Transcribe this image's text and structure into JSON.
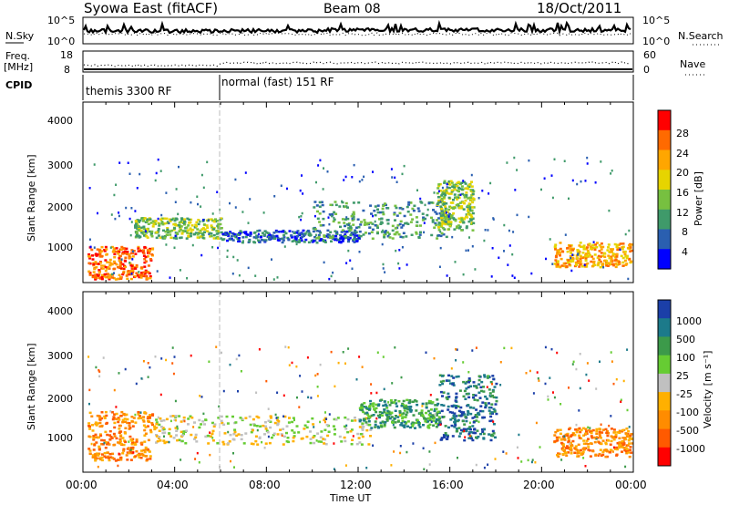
{
  "header": {
    "station": "Syowa East (fitACF)",
    "beam": "Beam 08",
    "date": "18/Oct/2011"
  },
  "noise_panel": {
    "left_label": "N.Sky",
    "right_label": "N.Search",
    "y_ticks_left": [
      "10^5",
      "10^0"
    ],
    "y_ticks_right": [
      "10^5",
      "10^0"
    ]
  },
  "freq_panel": {
    "left_label_line1": "Freq.",
    "left_label_line2": "[MHz]",
    "right_label": "Nave",
    "y_ticks_left": [
      "18",
      "8"
    ],
    "y_ticks_right": [
      "60",
      "0"
    ]
  },
  "cpid": {
    "label": "CPID",
    "segments": [
      {
        "name": "themis 3300 RF",
        "start_hour": 0
      },
      {
        "name": "normal (fast) 151 RF",
        "start_hour": 6
      }
    ]
  },
  "x_axis": {
    "label": "Time UT",
    "ticks": [
      "00:00",
      "04:00",
      "08:00",
      "12:00",
      "16:00",
      "20:00",
      "00:00"
    ]
  },
  "power_panel": {
    "ylabel": "Slant Range [km]",
    "yticks": [
      "4000",
      "3000",
      "2000",
      "1000"
    ],
    "cbar_label": "Power [dB]",
    "cbar_ticks": [
      "28",
      "24",
      "20",
      "16",
      "12",
      "8",
      "4"
    ],
    "cbar_colors": [
      "#ff0000",
      "#ff6a00",
      "#ffa600",
      "#e6d400",
      "#77c040",
      "#3f9a6a",
      "#2a5fb0",
      "#0000ff"
    ]
  },
  "velocity_panel": {
    "ylabel": "Slant Range [km]",
    "yticks": [
      "4000",
      "3000",
      "2000",
      "1000"
    ],
    "cbar_label": "Velocity [m s⁻¹]",
    "cbar_ticks": [
      "1000",
      "500",
      "100",
      "25",
      "-25",
      "-100",
      "-500",
      "-1000"
    ],
    "cbar_colors": [
      "#1b3fa8",
      "#1c7a8a",
      "#3c9a4a",
      "#66cc33",
      "#c0c0c0",
      "#ffb000",
      "#ff8c00",
      "#ff5a00",
      "#ff0000"
    ]
  },
  "chart_data": [
    {
      "type": "heatmap",
      "title": "Power [dB]",
      "xlabel": "Time UT",
      "ylabel": "Slant Range [km]",
      "xlim": [
        0,
        24
      ],
      "ylim": [
        200,
        4600
      ],
      "color_scale": [
        4,
        8,
        12,
        16,
        20,
        24,
        28
      ],
      "scatter_regions": [
        {
          "t": [
            0.2,
            3.0
          ],
          "range_km": [
            300,
            1100
          ],
          "value_db": 26
        },
        {
          "t": [
            2.2,
            6.0
          ],
          "range_km": [
            1300,
            1800
          ],
          "value_db": 12
        },
        {
          "t": [
            6.0,
            12.0
          ],
          "range_km": [
            1200,
            1500
          ],
          "value_db": 6
        },
        {
          "t": [
            10.0,
            16.0
          ],
          "range_km": [
            1300,
            2200
          ],
          "value_db": 8
        },
        {
          "t": [
            15.4,
            17.0
          ],
          "range_km": [
            1500,
            2700
          ],
          "value_db": 14
        },
        {
          "t": [
            20.5,
            23.9
          ],
          "range_km": [
            600,
            1200
          ],
          "value_db": 22
        }
      ]
    },
    {
      "type": "heatmap",
      "title": "Velocity [m s⁻¹]",
      "xlabel": "Time UT",
      "ylabel": "Slant Range [km]",
      "xlim": [
        0,
        24
      ],
      "ylim": [
        200,
        4600
      ],
      "color_scale": [
        -1000,
        -500,
        -100,
        -25,
        25,
        100,
        500,
        1000
      ],
      "scatter_regions": [
        {
          "t": [
            0.2,
            3.0
          ],
          "range_km": [
            500,
            1700
          ],
          "value_ms": -300
        },
        {
          "t": [
            3.0,
            12.5
          ],
          "range_km": [
            900,
            1600
          ],
          "value_ms": 0
        },
        {
          "t": [
            12.0,
            15.5
          ],
          "range_km": [
            1300,
            2000
          ],
          "value_ms": 50
        },
        {
          "t": [
            15.5,
            18.0
          ],
          "range_km": [
            1000,
            2600
          ],
          "value_ms": 300
        },
        {
          "t": [
            20.5,
            23.9
          ],
          "range_km": [
            600,
            1300
          ],
          "value_ms": -400
        }
      ]
    }
  ]
}
